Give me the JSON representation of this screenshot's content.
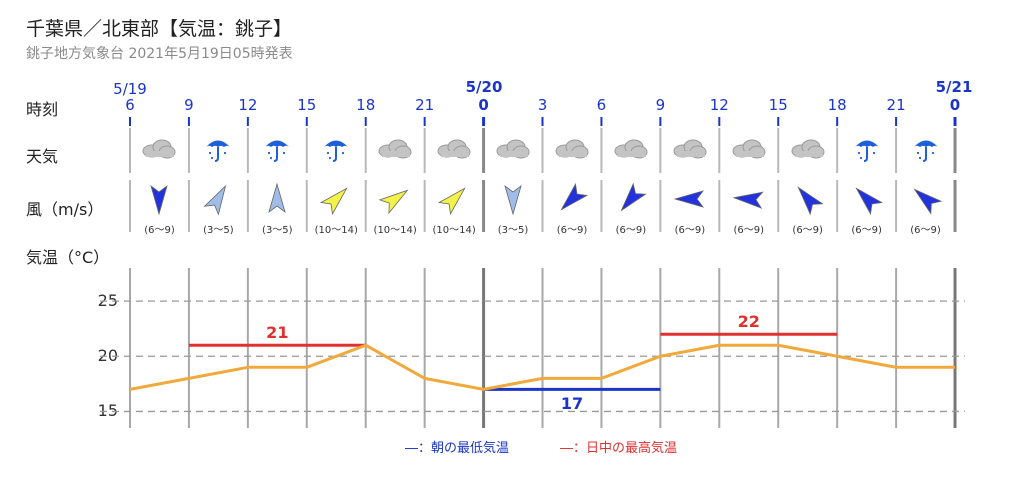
{
  "header": {
    "title": "千葉県／北東部【気温：銚子】",
    "subtitle": "銚子地方気象台 2021年5月19日05時発表"
  },
  "row_labels": {
    "time": "時刻",
    "weather": "天気",
    "wind": "風（m/s）",
    "temperature": "気温（°C）"
  },
  "dates": [
    "5/19",
    "5/20",
    "5/21"
  ],
  "hours": [
    "6",
    "9",
    "12",
    "15",
    "18",
    "21",
    "0",
    "3",
    "6",
    "9",
    "12",
    "15",
    "18",
    "21",
    "0"
  ],
  "weather_icons": [
    "cloud-icon",
    "umbrella-icon",
    "umbrella-icon",
    "umbrella-icon",
    "cloud-icon",
    "cloud-icon",
    "cloud-icon",
    "cloud-icon",
    "cloud-icon",
    "cloud-icon",
    "cloud-icon",
    "cloud-icon",
    "umbrella-icon",
    "umbrella-icon"
  ],
  "wind": {
    "ranges": [
      "(6〜9)",
      "(3〜5)",
      "(3〜5)",
      "(10〜14)",
      "(10〜14)",
      "(10〜14)",
      "(3〜5)",
      "(6〜9)",
      "(6〜9)",
      "(6〜9)",
      "(6〜9)",
      "(6〜9)",
      "(6〜9)",
      "(6〜9)"
    ],
    "directions_deg": [
      0,
      210,
      180,
      225,
      235,
      225,
      0,
      45,
      40,
      90,
      95,
      140,
      135,
      130
    ],
    "colors": [
      "#2233dd",
      "#9fbde8",
      "#9fbde8",
      "#f2f24a",
      "#f2f24a",
      "#f2f24a",
      "#9fbde8",
      "#2233dd",
      "#2233dd",
      "#2233dd",
      "#2233dd",
      "#2233dd",
      "#2233dd",
      "#2233dd"
    ]
  },
  "chart_data": {
    "type": "line",
    "x": [
      "6",
      "9",
      "12",
      "15",
      "18",
      "21",
      "0",
      "3",
      "6",
      "9",
      "12",
      "15",
      "18",
      "21",
      "0"
    ],
    "series": [
      {
        "values": [
          17,
          18,
          19,
          19,
          21,
          18,
          17,
          18,
          18,
          20,
          21,
          21,
          20,
          19,
          19
        ],
        "color": "#f0a93a"
      }
    ],
    "min_temp": {
      "value": 17,
      "label": "17",
      "span_hours": [
        "0",
        "9"
      ],
      "color": "#1a35c8"
    },
    "max_temp_day1": {
      "value": 21,
      "label": "21",
      "span_hours": [
        "9",
        "18"
      ],
      "color": "#e03030"
    },
    "max_temp_day2": {
      "value": 22,
      "label": "22",
      "span_hours": [
        "9",
        "18"
      ],
      "color": "#e03030"
    },
    "y_ticks": [
      "25",
      "20",
      "15"
    ],
    "ylim": [
      13.5,
      28
    ],
    "grid": true
  },
  "legend": {
    "min": "―：朝の最低気温",
    "max": "―：日中の最高気温",
    "min_color": "#1a35c8",
    "max_color": "#e03030"
  }
}
